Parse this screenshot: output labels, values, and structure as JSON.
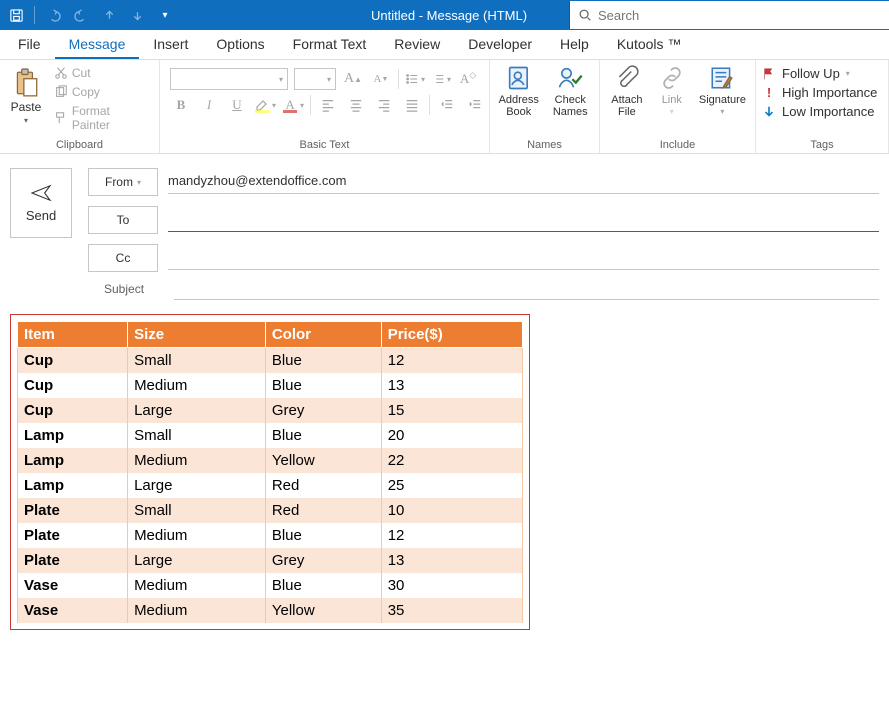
{
  "window": {
    "title": "Untitled  -  Message (HTML)"
  },
  "search": {
    "placeholder": "Search"
  },
  "tabs": {
    "file": "File",
    "message": "Message",
    "insert": "Insert",
    "options": "Options",
    "format_text": "Format Text",
    "review": "Review",
    "developer": "Developer",
    "help": "Help",
    "kutools": "Kutools ™"
  },
  "ribbon": {
    "clipboard": {
      "paste": "Paste",
      "cut": "Cut",
      "copy": "Copy",
      "format_painter": "Format Painter",
      "label": "Clipboard"
    },
    "basic_text": {
      "label": "Basic Text"
    },
    "names": {
      "address_book": "Address\nBook",
      "check_names": "Check\nNames",
      "label": "Names"
    },
    "include": {
      "attach_file": "Attach\nFile",
      "link": "Link",
      "signature": "Signature",
      "label": "Include"
    },
    "tags": {
      "follow_up": "Follow Up",
      "high": "High Importance",
      "low": "Low Importance",
      "label": "Tags"
    }
  },
  "compose": {
    "send": "Send",
    "from_label": "From",
    "from_value": "mandyzhou@extendoffice.com",
    "to_label": "To",
    "cc_label": "Cc",
    "subject_label": "Subject"
  },
  "table": {
    "type": "table",
    "header_bg": "#ed7d31",
    "header_fg": "#ffffff",
    "band_bg": "#fbe5d6",
    "border": "#cc3333",
    "columns": [
      "Item",
      "Size",
      "Color",
      "Price($)"
    ],
    "rows": [
      [
        "Cup",
        "Small",
        "Blue",
        "12"
      ],
      [
        "Cup",
        "Medium",
        "Blue",
        "13"
      ],
      [
        "Cup",
        "Large",
        "Grey",
        "15"
      ],
      [
        "Lamp",
        "Small",
        "Blue",
        "20"
      ],
      [
        "Lamp",
        "Medium",
        "Yellow",
        "22"
      ],
      [
        "Lamp",
        "Large",
        "Red",
        "25"
      ],
      [
        "Plate",
        "Small",
        "Red",
        "10"
      ],
      [
        "Plate",
        "Medium",
        "Blue",
        "12"
      ],
      [
        "Plate",
        "Large",
        "Grey",
        "13"
      ],
      [
        "Vase",
        "Medium",
        "Blue",
        "30"
      ],
      [
        "Vase",
        "Medium",
        "Yellow",
        "35"
      ]
    ]
  }
}
